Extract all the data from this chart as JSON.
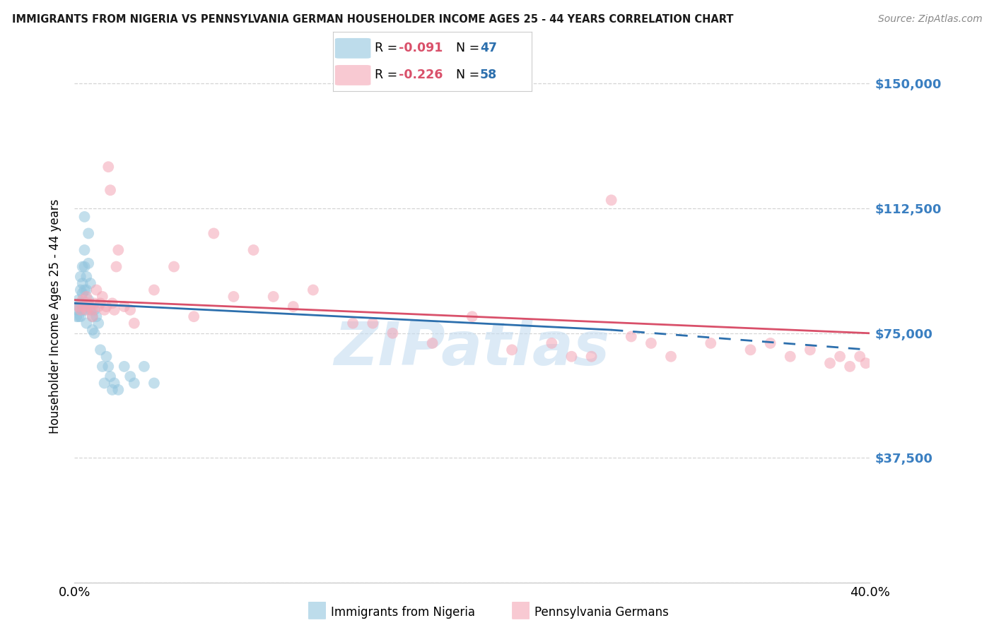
{
  "title": "IMMIGRANTS FROM NIGERIA VS PENNSYLVANIA GERMAN HOUSEHOLDER INCOME AGES 25 - 44 YEARS CORRELATION CHART",
  "source": "Source: ZipAtlas.com",
  "ylabel": "Householder Income Ages 25 - 44 years",
  "y_ticks": [
    0,
    37500,
    75000,
    112500,
    150000
  ],
  "y_tick_labels": [
    "",
    "$37,500",
    "$75,000",
    "$112,500",
    "$150,000"
  ],
  "x_min": 0.0,
  "x_max": 0.4,
  "y_min": 0,
  "y_max": 160000,
  "legend_blue_r": "-0.091",
  "legend_blue_n": "47",
  "legend_pink_r": "-0.226",
  "legend_pink_n": "58",
  "blue_color": "#92c5de",
  "pink_color": "#f4a5b5",
  "blue_line_color": "#2c6fad",
  "pink_line_color": "#d9506a",
  "tick_label_color": "#3a7fc1",
  "watermark_color": "#c5ddf0",
  "blue_scatter_x": [
    0.001,
    0.001,
    0.002,
    0.002,
    0.002,
    0.003,
    0.003,
    0.003,
    0.003,
    0.004,
    0.004,
    0.004,
    0.004,
    0.005,
    0.005,
    0.005,
    0.005,
    0.005,
    0.006,
    0.006,
    0.006,
    0.006,
    0.007,
    0.007,
    0.007,
    0.008,
    0.008,
    0.009,
    0.009,
    0.01,
    0.01,
    0.011,
    0.012,
    0.013,
    0.014,
    0.015,
    0.016,
    0.017,
    0.018,
    0.019,
    0.02,
    0.022,
    0.025,
    0.028,
    0.03,
    0.035,
    0.04
  ],
  "blue_scatter_y": [
    82000,
    80000,
    85000,
    83000,
    80000,
    92000,
    88000,
    84000,
    80000,
    95000,
    90000,
    87000,
    82000,
    110000,
    100000,
    95000,
    88000,
    82000,
    92000,
    88000,
    84000,
    78000,
    105000,
    96000,
    85000,
    90000,
    82000,
    80000,
    76000,
    82000,
    75000,
    80000,
    78000,
    70000,
    65000,
    60000,
    68000,
    65000,
    62000,
    58000,
    60000,
    58000,
    65000,
    62000,
    60000,
    65000,
    60000
  ],
  "pink_scatter_x": [
    0.002,
    0.003,
    0.004,
    0.005,
    0.006,
    0.006,
    0.007,
    0.008,
    0.009,
    0.009,
    0.01,
    0.011,
    0.012,
    0.013,
    0.014,
    0.015,
    0.016,
    0.017,
    0.018,
    0.019,
    0.02,
    0.021,
    0.022,
    0.025,
    0.028,
    0.03,
    0.04,
    0.05,
    0.06,
    0.07,
    0.08,
    0.09,
    0.1,
    0.11,
    0.12,
    0.14,
    0.16,
    0.18,
    0.2,
    0.22,
    0.24,
    0.26,
    0.28,
    0.3,
    0.32,
    0.34,
    0.35,
    0.36,
    0.37,
    0.38,
    0.385,
    0.39,
    0.395,
    0.398,
    0.15,
    0.25,
    0.27,
    0.29
  ],
  "pink_scatter_y": [
    83000,
    82000,
    85000,
    83000,
    86000,
    82000,
    84000,
    83000,
    82000,
    80000,
    84000,
    88000,
    83000,
    84000,
    86000,
    82000,
    83000,
    125000,
    118000,
    84000,
    82000,
    95000,
    100000,
    83000,
    82000,
    78000,
    88000,
    95000,
    80000,
    105000,
    86000,
    100000,
    86000,
    83000,
    88000,
    78000,
    75000,
    72000,
    80000,
    70000,
    72000,
    68000,
    74000,
    68000,
    72000,
    70000,
    72000,
    68000,
    70000,
    66000,
    68000,
    65000,
    68000,
    66000,
    78000,
    68000,
    115000,
    72000
  ]
}
